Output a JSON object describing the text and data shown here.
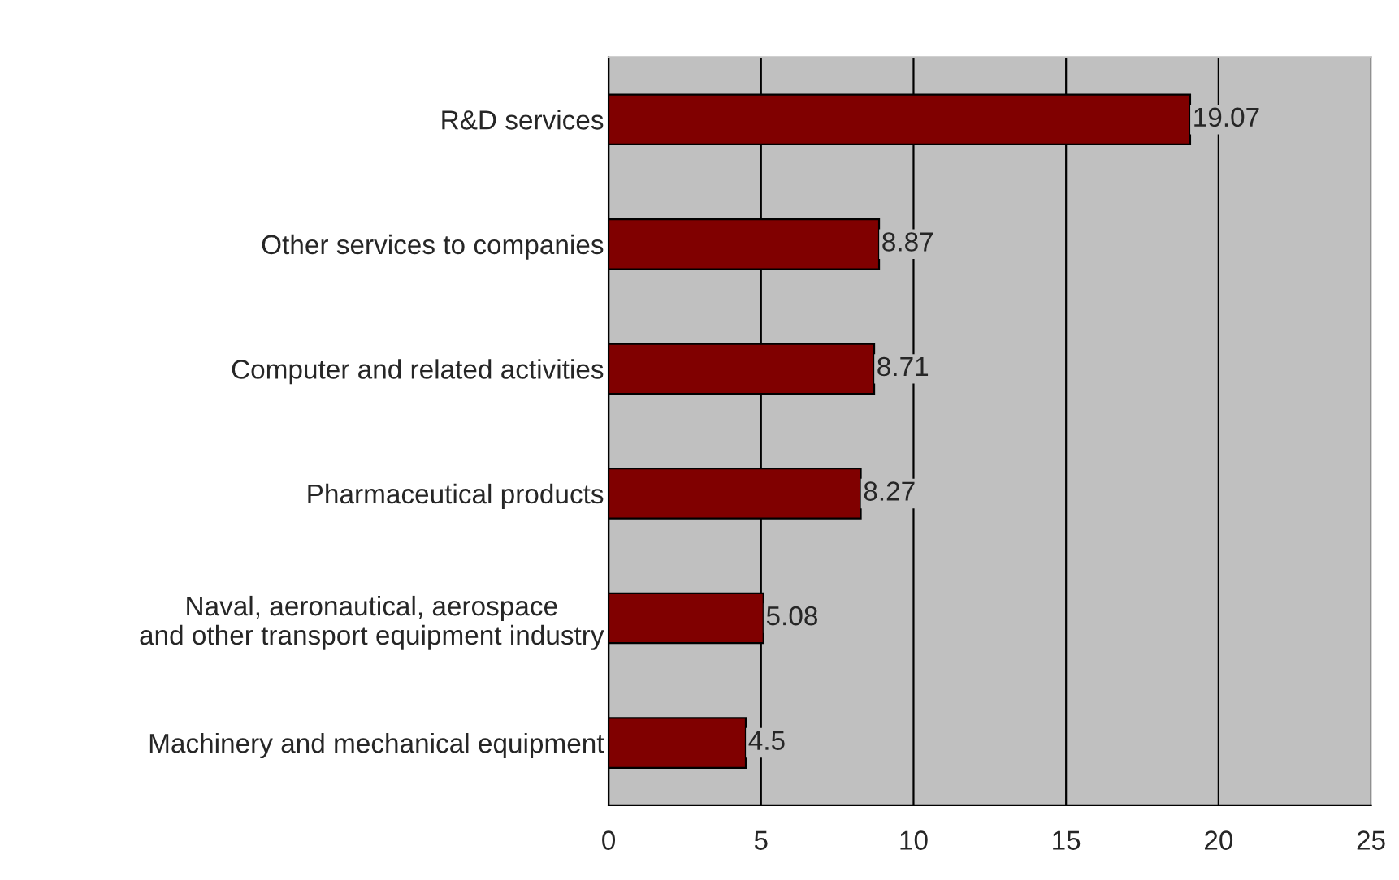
{
  "chart_data": {
    "type": "bar",
    "orientation": "horizontal",
    "categories": [
      "R&D services",
      "Other services to companies",
      "Computer and related activities",
      "Pharmaceutical products",
      "Naval, aeronautical, aerospace\nand other transport equipment industry",
      "Machinery and mechanical equipment"
    ],
    "values": [
      19.07,
      8.87,
      8.71,
      8.27,
      5.08,
      4.5
    ],
    "color": "#800000",
    "xlim": [
      0,
      25
    ],
    "xticks": [
      0,
      5,
      10,
      15,
      20,
      25
    ],
    "grid": "x",
    "data_labels": true
  }
}
